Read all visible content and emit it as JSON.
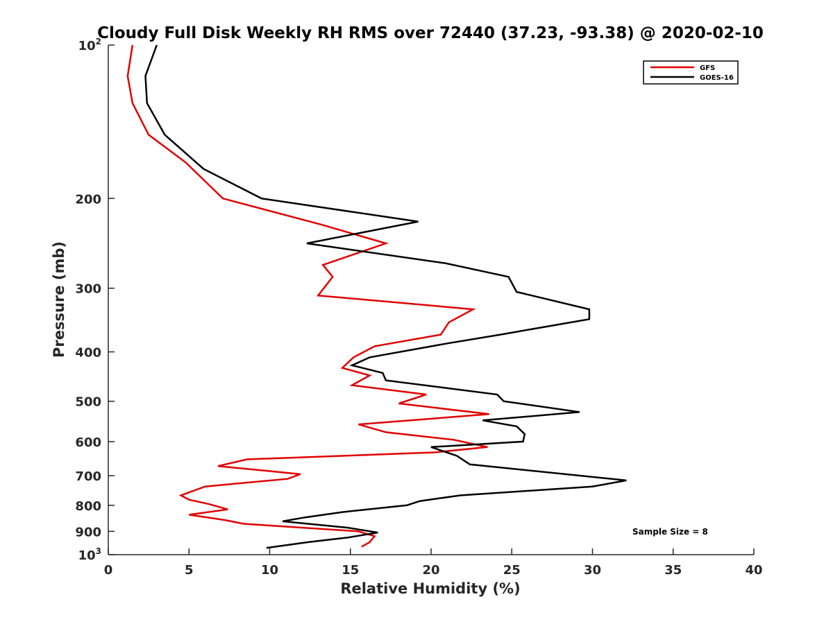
{
  "chart_data": {
    "type": "line",
    "title": "Cloudy Full Disk Weekly RH RMS over 72440 (37.23, -93.38) @ 2020-02-10",
    "xlabel": "Relative Humidity (%)",
    "ylabel": "Pressure (mb)",
    "xlim": [
      0,
      40
    ],
    "ylim": [
      1000,
      100
    ],
    "yscale": "log",
    "y_reversed": true,
    "grid": false,
    "legend_position": "top-right",
    "x_ticks": [
      "0",
      "5",
      "10",
      "15",
      "20",
      "25",
      "30",
      "35",
      "40"
    ],
    "y_ticks": [
      {
        "value": 100,
        "label": "10",
        "sup": "2"
      },
      {
        "value": 200,
        "label": "200",
        "sup": ""
      },
      {
        "value": 300,
        "label": "300",
        "sup": ""
      },
      {
        "value": 400,
        "label": "400",
        "sup": ""
      },
      {
        "value": 500,
        "label": "500",
        "sup": ""
      },
      {
        "value": 600,
        "label": "600",
        "sup": ""
      },
      {
        "value": 700,
        "label": "700",
        "sup": ""
      },
      {
        "value": 800,
        "label": "800",
        "sup": ""
      },
      {
        "value": 900,
        "label": "900",
        "sup": ""
      },
      {
        "value": 1000,
        "label": "10",
        "sup": "3"
      }
    ],
    "series": [
      {
        "name": "GFS",
        "color": "#e00000",
        "points": [
          [
            1.5,
            100
          ],
          [
            1.2,
            115
          ],
          [
            1.5,
            130
          ],
          [
            2.5,
            150
          ],
          [
            4.8,
            170
          ],
          [
            7.1,
            200
          ],
          [
            13.2,
            225
          ],
          [
            17.2,
            245
          ],
          [
            13.3,
            270
          ],
          [
            13.9,
            285
          ],
          [
            13.0,
            310
          ],
          [
            22.6,
            330
          ],
          [
            21.1,
            350
          ],
          [
            20.6,
            370
          ],
          [
            16.5,
            390
          ],
          [
            15.2,
            410
          ],
          [
            14.5,
            430
          ],
          [
            16.2,
            445
          ],
          [
            15.1,
            465
          ],
          [
            19.7,
            485
          ],
          [
            18.0,
            505
          ],
          [
            23.6,
            530
          ],
          [
            15.5,
            555
          ],
          [
            17.2,
            575
          ],
          [
            21.4,
            595
          ],
          [
            23.5,
            615
          ],
          [
            20.2,
            630
          ],
          [
            8.6,
            650
          ],
          [
            6.8,
            670
          ],
          [
            11.9,
            695
          ],
          [
            11.1,
            710
          ],
          [
            6.0,
            735
          ],
          [
            4.5,
            765
          ],
          [
            5.0,
            780
          ],
          [
            6.2,
            795
          ],
          [
            7.4,
            815
          ],
          [
            5.0,
            835
          ],
          [
            7.2,
            855
          ],
          [
            8.4,
            870
          ],
          [
            15.5,
            900
          ],
          [
            16.5,
            920
          ],
          [
            16.2,
            945
          ],
          [
            15.7,
            965
          ]
        ]
      },
      {
        "name": "GOES-16",
        "color": "#000000",
        "points": [
          [
            3.0,
            100
          ],
          [
            2.3,
            115
          ],
          [
            2.4,
            130
          ],
          [
            3.5,
            150
          ],
          [
            5.9,
            175
          ],
          [
            9.5,
            200
          ],
          [
            19.2,
            222
          ],
          [
            12.3,
            245
          ],
          [
            20.9,
            268
          ],
          [
            24.8,
            285
          ],
          [
            25.3,
            305
          ],
          [
            29.8,
            330
          ],
          [
            29.8,
            345
          ],
          [
            24.3,
            370
          ],
          [
            21.0,
            385
          ],
          [
            16.2,
            410
          ],
          [
            15.1,
            425
          ],
          [
            17.0,
            440
          ],
          [
            17.2,
            455
          ],
          [
            24.1,
            485
          ],
          [
            24.5,
            500
          ],
          [
            29.2,
            525
          ],
          [
            23.2,
            545
          ],
          [
            25.3,
            560
          ],
          [
            25.8,
            580
          ],
          [
            25.7,
            600
          ],
          [
            20.0,
            615
          ],
          [
            21.6,
            640
          ],
          [
            22.4,
            665
          ],
          [
            32.1,
            715
          ],
          [
            30.0,
            735
          ],
          [
            21.8,
            765
          ],
          [
            19.3,
            785
          ],
          [
            18.5,
            800
          ],
          [
            14.5,
            825
          ],
          [
            12.2,
            845
          ],
          [
            10.8,
            860
          ],
          [
            14.8,
            885
          ],
          [
            16.7,
            905
          ],
          [
            14.9,
            925
          ],
          [
            12.4,
            945
          ],
          [
            9.8,
            970
          ]
        ]
      }
    ],
    "annotations": [
      "Sample Size = 8"
    ]
  }
}
